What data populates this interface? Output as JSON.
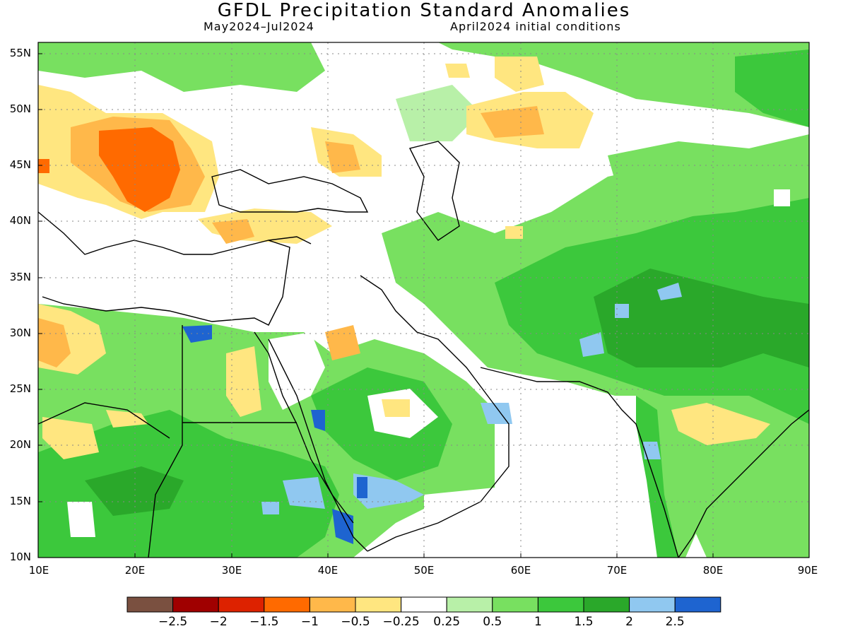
{
  "title": "GFDL Precipitation Standard Anomalies",
  "subtitle_left": "May2024–Jul2024",
  "subtitle_right": "April2024 initial conditions",
  "lat_labels": [
    "55N",
    "50N",
    "45N",
    "40N",
    "35N",
    "30N",
    "25N",
    "20N",
    "15N",
    "10N"
  ],
  "lon_labels": [
    "10E",
    "20E",
    "30E",
    "40E",
    "50E",
    "60E",
    "70E",
    "80E",
    "90E"
  ],
  "colorbar": {
    "colors": [
      "#7a5040",
      "#a00000",
      "#dd2200",
      "#ff6a00",
      "#ffb84a",
      "#ffe680",
      "#ffffff",
      "#b8f0a8",
      "#78e060",
      "#3cc83c",
      "#2aa82a",
      "#90c8f0",
      "#1e64d0"
    ],
    "labels": [
      "−2.5",
      "−2",
      "−1.5",
      "−1",
      "−0.5",
      "−0.25",
      "0.25",
      "0.5",
      "1",
      "1.5",
      "2",
      "2.5"
    ]
  },
  "map_extent": {
    "lon": [
      10,
      90
    ],
    "lat": [
      10,
      56
    ]
  }
}
